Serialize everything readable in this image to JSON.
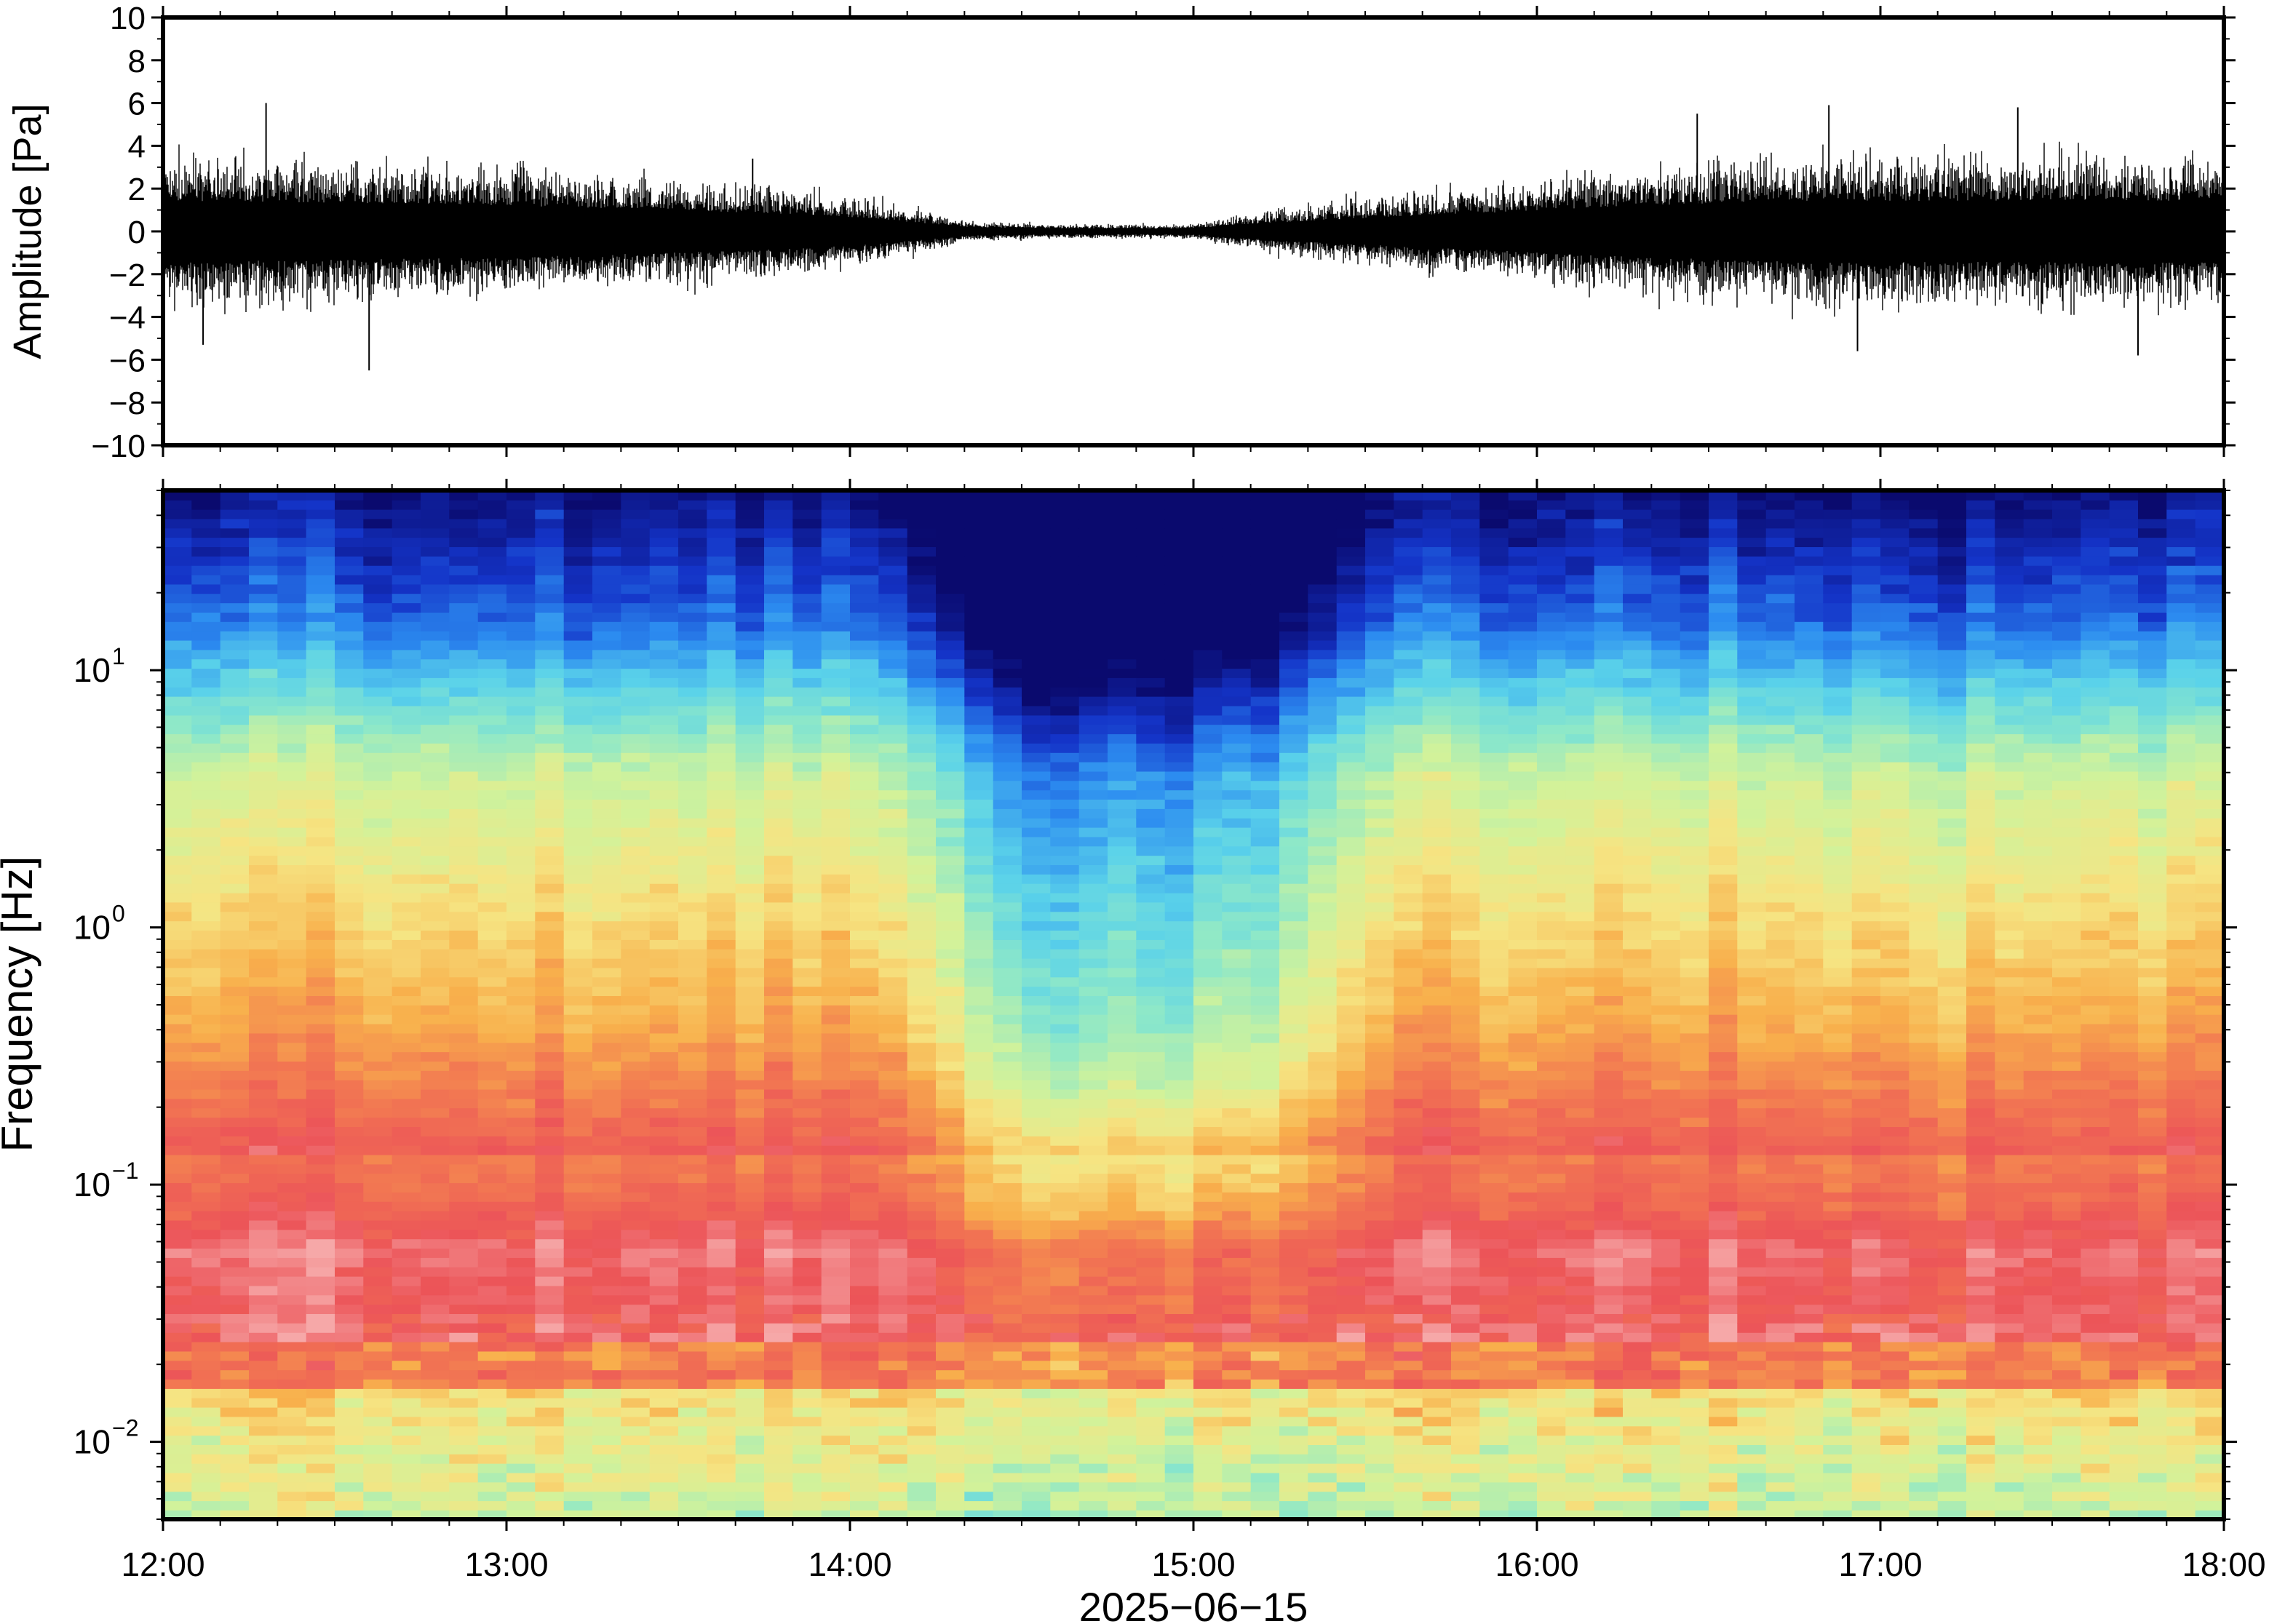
{
  "chart_data": [
    {
      "type": "line",
      "ylabel": "Amplitude [Pa]",
      "ylim": [
        -10,
        10
      ],
      "yticks": [
        -10,
        -8,
        -6,
        -4,
        -2,
        0,
        2,
        4,
        6,
        8,
        10
      ],
      "ytick_labels": [
        "−10",
        "−8",
        "−6",
        "−4",
        "−2",
        "0",
        "2",
        "4",
        "6",
        "8",
        "10"
      ],
      "xlim": [
        "12:00",
        "18:00"
      ],
      "grid": false,
      "series": [
        {
          "envelope_hours": [
            12.0,
            12.5,
            13.0,
            13.5,
            13.9,
            14.1,
            14.35,
            14.6,
            15.0,
            15.1,
            15.4,
            15.8,
            16.3,
            16.8,
            17.3,
            18.0
          ],
          "peak_abs_pa": [
            2.6,
            2.4,
            2.2,
            1.8,
            1.4,
            1.0,
            0.35,
            0.25,
            0.25,
            0.5,
            1.0,
            1.5,
            2.2,
            2.6,
            2.6,
            2.6
          ],
          "spikes": [
            {
              "time": "12:18",
              "value": 6.0
            },
            {
              "time": "12:07",
              "value": -5.3
            },
            {
              "time": "12:36",
              "value": -6.5
            },
            {
              "time": "13:43",
              "value": 3.4
            },
            {
              "time": "16:28",
              "value": 5.5
            },
            {
              "time": "16:51",
              "value": 5.9
            },
            {
              "time": "17:24",
              "value": 5.8
            },
            {
              "time": "17:45",
              "value": -5.8
            },
            {
              "time": "16:56",
              "value": -5.6
            }
          ]
        }
      ]
    },
    {
      "type": "heatmap",
      "ylabel": "Frequency [Hz]",
      "yscale": "log",
      "ylim": [
        0.005,
        50
      ],
      "yticks": [
        0.01,
        0.1,
        1,
        10
      ],
      "ytick_bases": [
        "10",
        "10",
        "10",
        "10"
      ],
      "ytick_exponents": [
        "−2",
        "−1",
        "0",
        "1"
      ],
      "xlabel": "2025−06−15",
      "xticks": [
        "12:00",
        "13:00",
        "14:00",
        "15:00",
        "16:00",
        "17:00",
        "18:00"
      ],
      "xlim": [
        "12:00",
        "18:00"
      ],
      "colormap": "spectral",
      "colormap_stops": [
        "#0a0a6e",
        "#1434c8",
        "#2c8cf0",
        "#5ad2ea",
        "#8ee8c8",
        "#d2f29a",
        "#f6e482",
        "#f8b04c",
        "#f27852",
        "#ec5458",
        "#f6a8a8"
      ],
      "quiet_period": [
        "14:30",
        "15:05"
      ],
      "grid": false
    }
  ]
}
